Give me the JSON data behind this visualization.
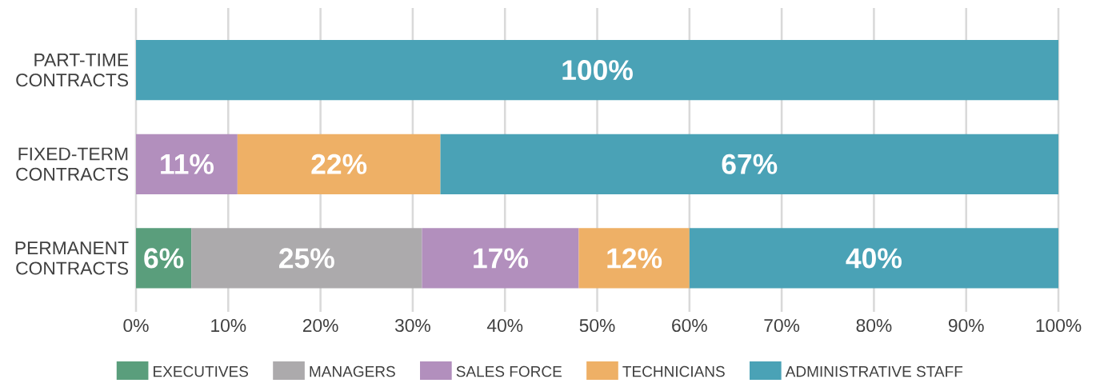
{
  "chart_data": {
    "type": "bar",
    "orientation": "horizontal",
    "stacked": true,
    "categories": [
      "PART-TIME CONTRACTS",
      "FIXED-TERM CONTRACTS",
      "PERMANENT CONTRACTS"
    ],
    "series": [
      {
        "name": "EXECUTIVES",
        "color": "#5a9e7c",
        "values": [
          null,
          null,
          6
        ],
        "value_labels": [
          null,
          null,
          "6%"
        ]
      },
      {
        "name": "MANAGERS",
        "color": "#acaaac",
        "values": [
          null,
          null,
          25
        ],
        "value_labels": [
          null,
          null,
          "25%"
        ]
      },
      {
        "name": "SALES FORCE",
        "color": "#b28fbd",
        "values": [
          null,
          11,
          17
        ],
        "value_labels": [
          null,
          "11%",
          "17%"
        ]
      },
      {
        "name": "TECHNICIANS",
        "color": "#eeb066",
        "values": [
          null,
          22,
          12
        ],
        "value_labels": [
          null,
          "22%",
          "12%"
        ]
      },
      {
        "name": "ADMINISTRATIVE STAFF",
        "color": "#4aa2b6",
        "values": [
          100,
          67,
          40
        ],
        "value_labels": [
          "100%",
          "67%",
          "40%"
        ]
      }
    ],
    "xlim": [
      0,
      100
    ],
    "xticks": [
      {
        "value": 0,
        "label": "0%"
      },
      {
        "value": 10,
        "label": "10%"
      },
      {
        "value": 20,
        "label": "20%"
      },
      {
        "value": 30,
        "label": "30%"
      },
      {
        "value": 40,
        "label": "40%"
      },
      {
        "value": 50,
        "label": "50%"
      },
      {
        "value": 60,
        "label": "60%"
      },
      {
        "value": 70,
        "label": "70%"
      },
      {
        "value": 80,
        "label": "80%"
      },
      {
        "value": 90,
        "label": "90%"
      },
      {
        "value": 100,
        "label": "100%"
      }
    ],
    "grid": "x",
    "legend": "bottom"
  }
}
